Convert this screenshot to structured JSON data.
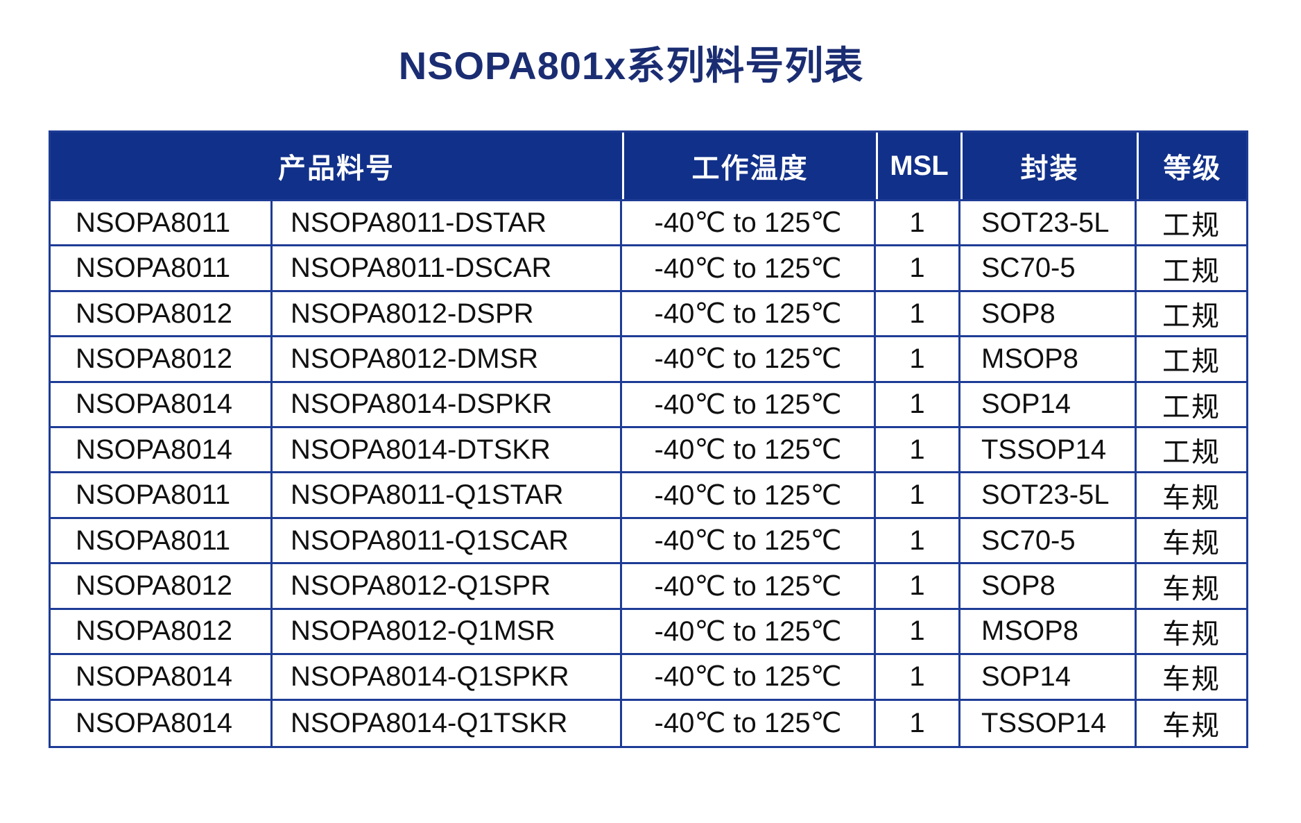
{
  "title": "NSOPA801x系列料号列表",
  "colors": {
    "header_bg": "#113089",
    "grid_border": "#1E3C96",
    "title_text": "#1B2D72",
    "header_text": "#ffffff",
    "body_text": "#101010"
  },
  "table": {
    "headers": {
      "product": "产品料号",
      "temp": "工作温度",
      "msl": "MSL",
      "package": "封装",
      "grade": "等级"
    },
    "rows": [
      {
        "series": "NSOPA8011",
        "part": "NSOPA8011-DSTAR",
        "temp": "-40℃ to 125℃",
        "msl": "1",
        "package": "SOT23-5L",
        "grade": "工规"
      },
      {
        "series": "NSOPA8011",
        "part": "NSOPA8011-DSCAR",
        "temp": "-40℃ to 125℃",
        "msl": "1",
        "package": "SC70-5",
        "grade": "工规"
      },
      {
        "series": "NSOPA8012",
        "part": "NSOPA8012-DSPR",
        "temp": "-40℃ to 125℃",
        "msl": "1",
        "package": "SOP8",
        "grade": "工规"
      },
      {
        "series": "NSOPA8012",
        "part": "NSOPA8012-DMSR",
        "temp": "-40℃ to 125℃",
        "msl": "1",
        "package": "MSOP8",
        "grade": "工规"
      },
      {
        "series": "NSOPA8014",
        "part": "NSOPA8014-DSPKR",
        "temp": "-40℃ to 125℃",
        "msl": "1",
        "package": "SOP14",
        "grade": "工规"
      },
      {
        "series": "NSOPA8014",
        "part": "NSOPA8014-DTSKR",
        "temp": "-40℃ to 125℃",
        "msl": "1",
        "package": "TSSOP14",
        "grade": "工规"
      },
      {
        "series": "NSOPA8011",
        "part": "NSOPA8011-Q1STAR",
        "temp": "-40℃ to 125℃",
        "msl": "1",
        "package": "SOT23-5L",
        "grade": "车规"
      },
      {
        "series": "NSOPA8011",
        "part": "NSOPA8011-Q1SCAR",
        "temp": "-40℃ to 125℃",
        "msl": "1",
        "package": "SC70-5",
        "grade": "车规"
      },
      {
        "series": "NSOPA8012",
        "part": "NSOPA8012-Q1SPR",
        "temp": "-40℃ to 125℃",
        "msl": "1",
        "package": "SOP8",
        "grade": "车规"
      },
      {
        "series": "NSOPA8012",
        "part": "NSOPA8012-Q1MSR",
        "temp": "-40℃ to 125℃",
        "msl": "1",
        "package": "MSOP8",
        "grade": "车规"
      },
      {
        "series": "NSOPA8014",
        "part": "NSOPA8014-Q1SPKR",
        "temp": "-40℃ to 125℃",
        "msl": "1",
        "package": "SOP14",
        "grade": "车规"
      },
      {
        "series": "NSOPA8014",
        "part": "NSOPA8014-Q1TSKR",
        "temp": "-40℃ to 125℃",
        "msl": "1",
        "package": "TSSOP14",
        "grade": "车规"
      }
    ]
  }
}
